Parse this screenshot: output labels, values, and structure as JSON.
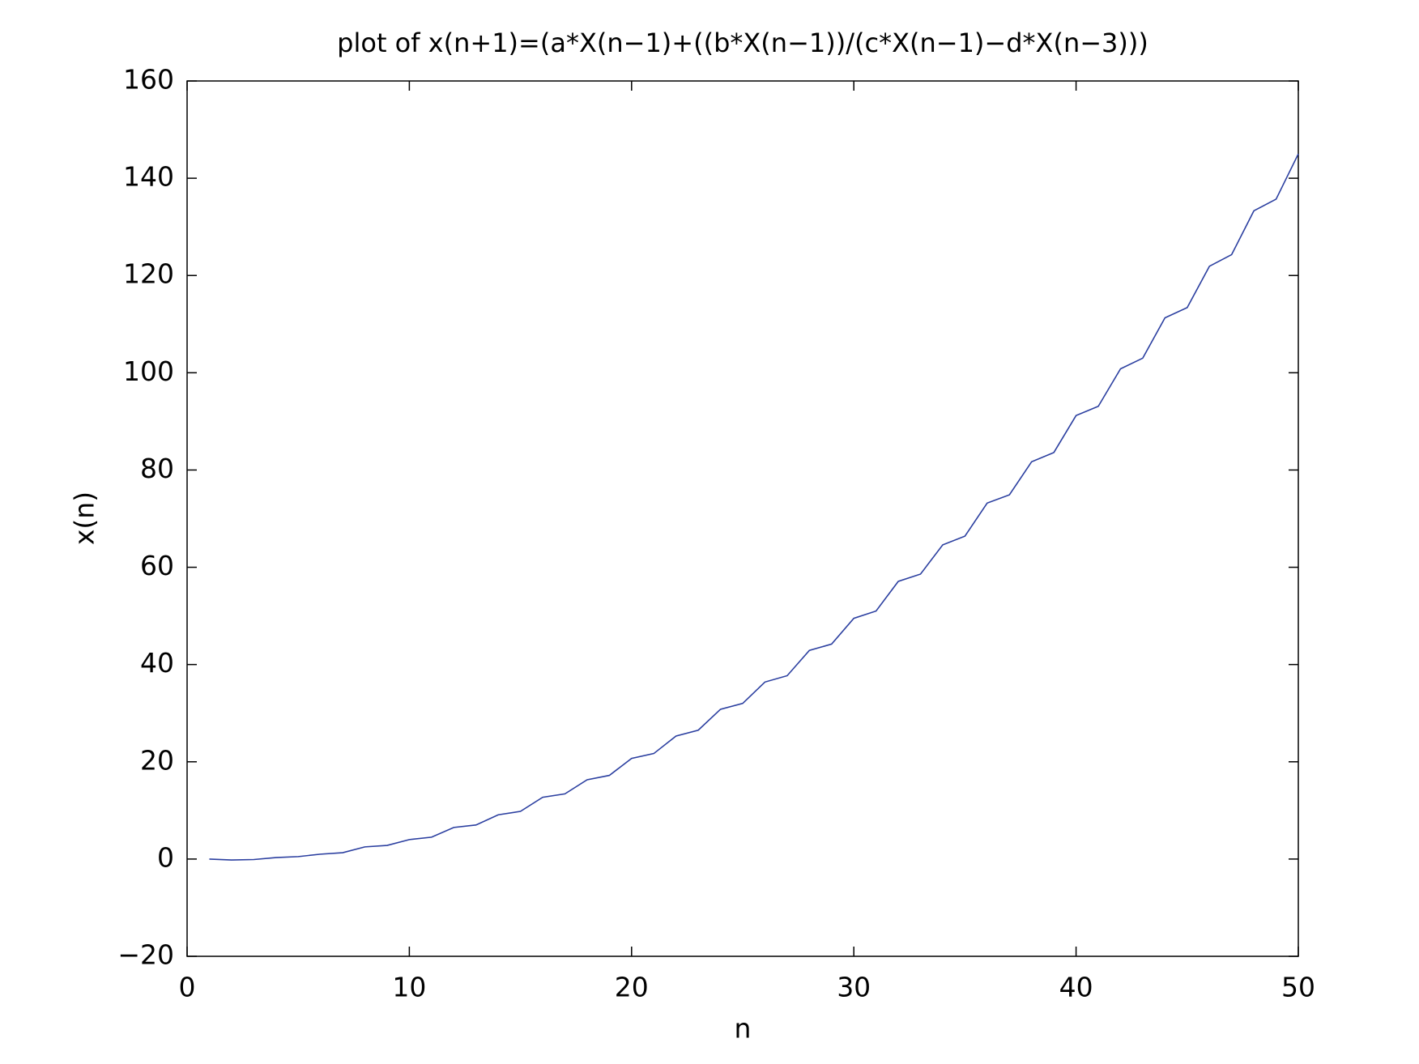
{
  "chart_data": {
    "type": "line",
    "title": "plot of x(n+1)=(a*X(n−1)+((b*X(n−1))/(c*X(n−1)−d*X(n−3)))",
    "x_label": "n",
    "y_label": "x(n)",
    "x": [
      1,
      2,
      3,
      4,
      5,
      6,
      7,
      8,
      9,
      10,
      11,
      12,
      13,
      14,
      15,
      16,
      17,
      18,
      19,
      20,
      21,
      22,
      23,
      24,
      25,
      26,
      27,
      28,
      29,
      30,
      31,
      32,
      33,
      34,
      35,
      36,
      37,
      38,
      39,
      40,
      41,
      42,
      43,
      44,
      45,
      46,
      47,
      48,
      49,
      50
    ],
    "series": [
      {
        "color": "#2b3fa0",
        "values": [
          0,
          -0.2,
          -0.1,
          0.3,
          0.5,
          1.0,
          1.3,
          2.5,
          2.8,
          4.0,
          4.5,
          6.5,
          7.0,
          9.1,
          9.8,
          12.7,
          13.4,
          16.3,
          17.2,
          20.7,
          21.7,
          25.3,
          26.5,
          30.8,
          32.0,
          36.4,
          37.7,
          42.9,
          44.2,
          49.5,
          51.0,
          57.1,
          58.6,
          64.6,
          66.4,
          73.2,
          74.9,
          81.7,
          83.6,
          91.2,
          93.1,
          100.8,
          103.0,
          111.3,
          113.4,
          121.9,
          124.3,
          133.3,
          135.7,
          145
        ]
      }
    ],
    "xlim": [
      0,
      50
    ],
    "xticks": [
      0,
      10,
      20,
      30,
      40,
      50
    ],
    "ylim": [
      -20,
      160
    ],
    "yticks": [
      {
        "value": -20,
        "label": "−20"
      },
      0,
      20,
      40,
      60,
      80,
      100,
      120,
      140,
      160
    ]
  }
}
